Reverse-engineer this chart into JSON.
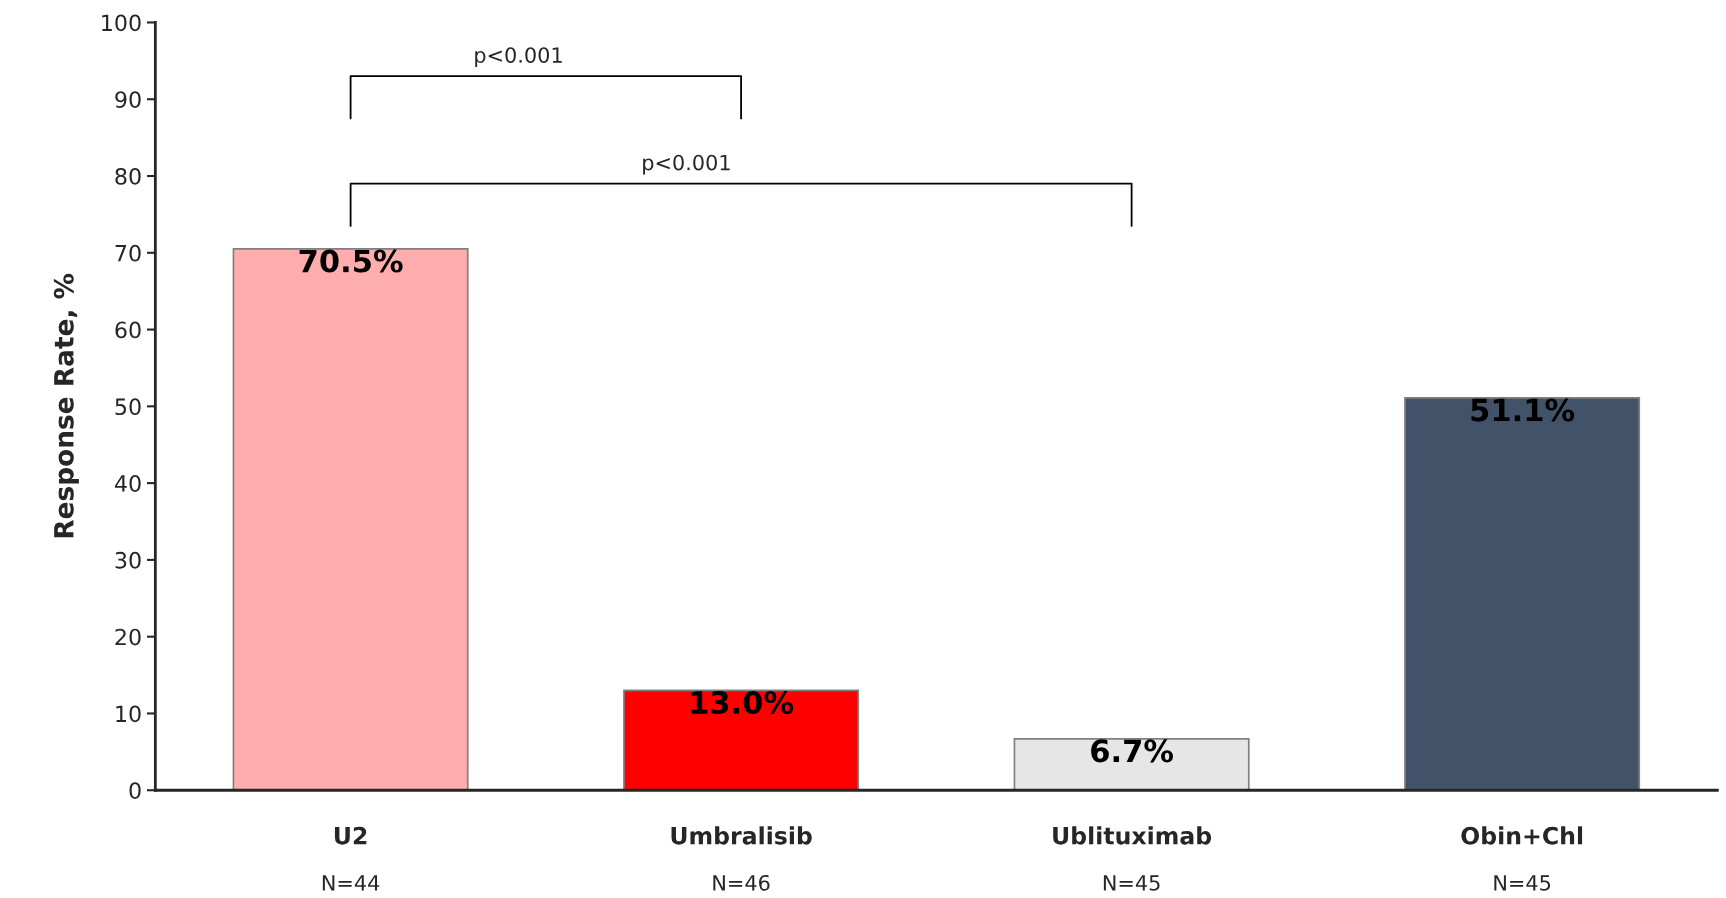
{
  "chart_data": {
    "type": "bar",
    "ylabel": "Response Rate, %",
    "categories": [
      "U2",
      "Umbralisib",
      "Ublituximab",
      "Obin+Chl"
    ],
    "values": [
      70.5,
      13.0,
      6.7,
      51.1
    ],
    "colors": [
      "#ffadad",
      "#ff0000",
      "#e6e6e6",
      "#425269"
    ],
    "value_labels": [
      "70.5%",
      "13.0%",
      "6.7%",
      "51.1%"
    ],
    "ylim": [
      0,
      100
    ],
    "yticks": [
      0,
      10,
      20,
      30,
      40,
      50,
      60,
      70,
      80,
      90,
      100
    ],
    "grid": false,
    "legend": false,
    "annotations": [
      "N=44",
      "N=46",
      "N=45",
      "N=45",
      "p<0.001",
      "p<0.001"
    ]
  }
}
